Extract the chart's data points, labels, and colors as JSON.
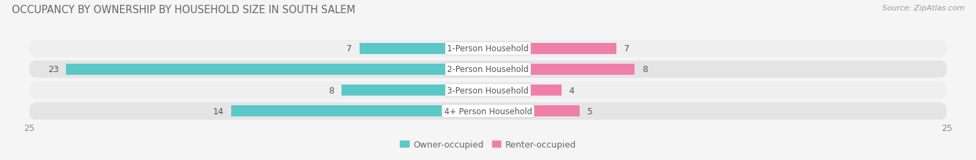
{
  "title": "OCCUPANCY BY OWNERSHIP BY HOUSEHOLD SIZE IN SOUTH SALEM",
  "source": "Source: ZipAtlas.com",
  "categories": [
    "1-Person Household",
    "2-Person Household",
    "3-Person Household",
    "4+ Person Household"
  ],
  "owner_values": [
    7,
    23,
    8,
    14
  ],
  "renter_values": [
    7,
    8,
    4,
    5
  ],
  "owner_color": "#5bc8c8",
  "renter_color": "#f07fa8",
  "axis_max": 25,
  "bar_height": 0.52,
  "row_bg_light": "#efefef",
  "row_bg_dark": "#e4e4e4",
  "label_bg_color": "#ffffff",
  "title_fontsize": 10.5,
  "source_fontsize": 8,
  "tick_fontsize": 9,
  "bar_label_fontsize": 9,
  "legend_fontsize": 9,
  "category_fontsize": 8.5,
  "fig_bg": "#f5f5f5"
}
